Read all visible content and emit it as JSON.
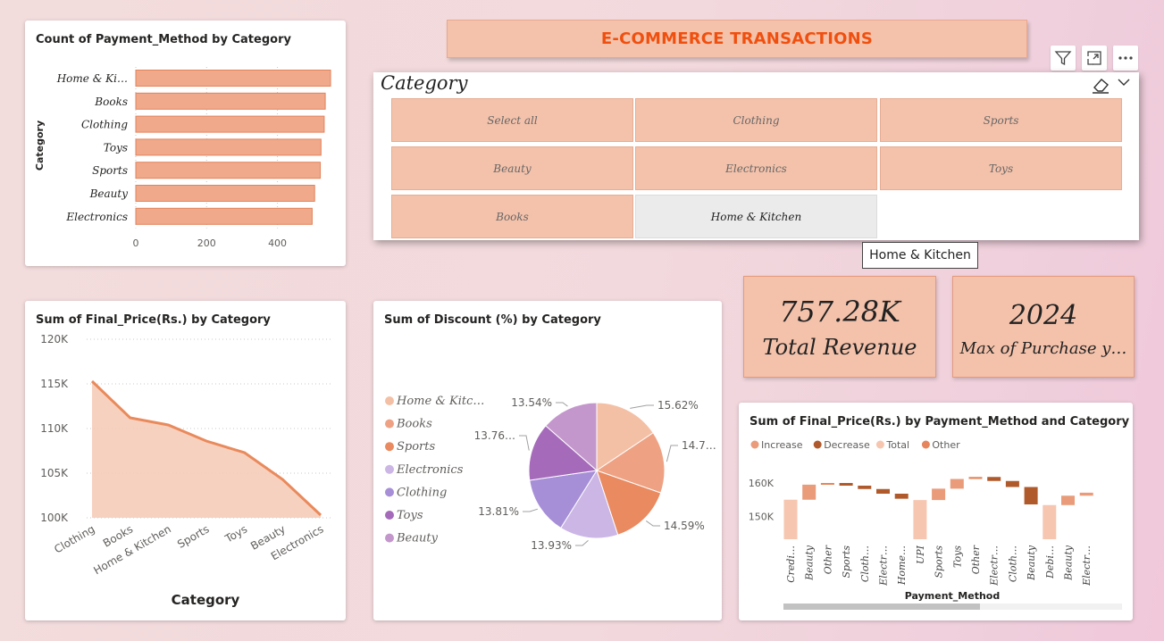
{
  "header": {
    "title": "E-COMMERCE TRANSACTIONS"
  },
  "toolbar": {
    "filter_icon": "filter-icon",
    "focus_icon": "focus-mode-icon",
    "more_icon": "more-options-icon"
  },
  "slicer": {
    "title": "Category",
    "tiles": [
      "Select all",
      "Clothing",
      "Sports",
      "Beauty",
      "Electronics",
      "Toys",
      "Books",
      "Home & Kitchen"
    ],
    "selected": "Home & Kitchen",
    "tooltip": "Home & Kitchen"
  },
  "kpis": {
    "revenue": {
      "value": "757.28K",
      "label": "Total Revenue"
    },
    "year": {
      "value": "2024",
      "label": "Max of Purchase y…"
    }
  },
  "colors": {
    "accent": "#f4c2ab",
    "bar": "#f0a98a",
    "title": "#f0500f"
  },
  "bar_chart": {
    "title": "Count of Payment_Method by Category",
    "ylabel": "Category",
    "ticks": [
      "0",
      "200",
      "400"
    ]
  },
  "area_chart": {
    "title": "Sum of Final_Price(Rs.) by Category",
    "xlabel": "Category",
    "yticks": [
      "120K",
      "115K",
      "110K",
      "105K",
      "100K"
    ]
  },
  "pie_chart": {
    "title": "Sum of Discount (%) by Category",
    "labels": [
      "15.62%",
      "14.7…",
      "14.59%",
      "13.93%",
      "13.81%",
      "13.76…",
      "13.54%"
    ]
  },
  "waterfall_chart": {
    "title": "Sum of Final_Price(Rs.) by Payment_Method and Category",
    "legend": [
      "Increase",
      "Decrease",
      "Total",
      "Other"
    ],
    "yticks": [
      "160K",
      "150K"
    ],
    "xlabel": "Payment_Method"
  },
  "chart_data": [
    {
      "type": "bar",
      "title": "Count of Payment_Method by Category",
      "ylabel": "Category",
      "categories": [
        "Home & Ki…",
        "Books",
        "Clothing",
        "Toys",
        "Sports",
        "Beauty",
        "Electronics"
      ],
      "values": [
        550,
        535,
        532,
        523,
        521,
        505,
        498
      ],
      "xlim": [
        0,
        560
      ],
      "xticks": [
        0,
        200,
        400
      ]
    },
    {
      "type": "area",
      "title": "Sum of Final_Price(Rs.) by Category",
      "xlabel": "Category",
      "categories": [
        "Clothing",
        "Books",
        "Home & Kitchen",
        "Sports",
        "Toys",
        "Beauty",
        "Electronics"
      ],
      "values": [
        115300,
        111200,
        110400,
        108600,
        107300,
        104300,
        100300
      ],
      "ylim": [
        100000,
        120000
      ],
      "yticks": [
        100000,
        105000,
        110000,
        115000,
        120000
      ]
    },
    {
      "type": "pie",
      "title": "Sum of Discount (%) by Category",
      "legend": [
        "Home & Kitc…",
        "Books",
        "Sports",
        "Electronics",
        "Clothing",
        "Toys",
        "Beauty"
      ],
      "values": [
        15.62,
        14.75,
        14.59,
        13.93,
        13.81,
        13.76,
        13.54
      ],
      "labels": [
        "15.62%",
        "14.7…",
        "14.59%",
        "13.93%",
        "13.81%",
        "13.76…",
        "13.54%"
      ],
      "colors": [
        "#f4c0a5",
        "#eea283",
        "#e98a60",
        "#cbb6e6",
        "#a78fd8",
        "#a56bba",
        "#c497cc"
      ]
    },
    {
      "type": "bar",
      "subtype": "waterfall",
      "title": "Sum of Final_Price(Rs.) by Payment_Method and Category",
      "xlabel": "Payment_Method",
      "legend": [
        "Increase",
        "Decrease",
        "Total",
        "Other"
      ],
      "categories": [
        "Credi…",
        "Beauty",
        "Other",
        "Sports",
        "Cloth…",
        "Electr…",
        "Home…",
        "UPI",
        "Sports",
        "Toys",
        "Other",
        "Electr…",
        "Cloth…",
        "Beauty",
        "Debi…",
        "Beauty",
        "Electr…"
      ],
      "bars": [
        {
          "kind": "total",
          "start": 0,
          "end": 155000
        },
        {
          "kind": "increase",
          "start": 155000,
          "end": 159500
        },
        {
          "kind": "other",
          "start": 159500,
          "end": 160000
        },
        {
          "kind": "decrease",
          "start": 160000,
          "end": 159200
        },
        {
          "kind": "decrease",
          "start": 159200,
          "end": 158200
        },
        {
          "kind": "decrease",
          "start": 158200,
          "end": 156800
        },
        {
          "kind": "decrease",
          "start": 156800,
          "end": 155300
        },
        {
          "kind": "total",
          "start": 0,
          "end": 154900
        },
        {
          "kind": "increase",
          "start": 154900,
          "end": 158300
        },
        {
          "kind": "increase",
          "start": 158300,
          "end": 161200
        },
        {
          "kind": "other",
          "start": 161200,
          "end": 161800
        },
        {
          "kind": "decrease",
          "start": 161800,
          "end": 160600
        },
        {
          "kind": "decrease",
          "start": 160600,
          "end": 158800
        },
        {
          "kind": "decrease",
          "start": 158800,
          "end": 153600
        },
        {
          "kind": "total",
          "start": 0,
          "end": 153400
        },
        {
          "kind": "increase",
          "start": 153400,
          "end": 156200
        },
        {
          "kind": "increase",
          "start": 156200,
          "end": 157100
        }
      ],
      "ylim": [
        144000,
        164000
      ],
      "yticks": [
        150000,
        160000
      ],
      "colors": {
        "increase": "#e99b7a",
        "decrease": "#b05a2c",
        "total": "#f6c6b0",
        "other": "#e6855b"
      }
    }
  ]
}
